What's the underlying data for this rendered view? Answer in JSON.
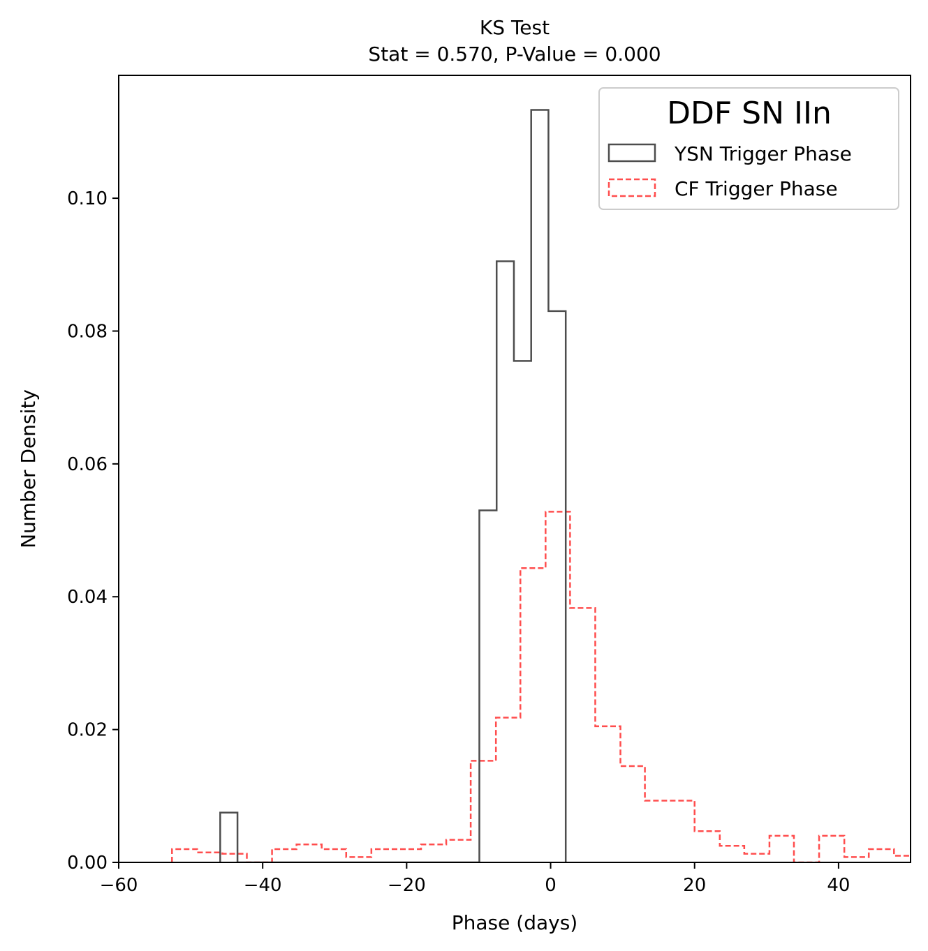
{
  "chart_data": {
    "type": "histogram-step",
    "title": "KS Test",
    "subtitle": "Stat = 0.570, P-Value = 0.000",
    "xlabel": "Phase (days)",
    "ylabel": "Number Density",
    "xlim": [
      -60,
      50
    ],
    "ylim": [
      0,
      0.1185
    ],
    "xticks": [
      -60,
      -40,
      -20,
      0,
      20,
      40
    ],
    "xtick_labels": [
      "−60",
      "−40",
      "−20",
      "0",
      "20",
      "40"
    ],
    "yticks": [
      0.0,
      0.02,
      0.04,
      0.06,
      0.08,
      0.1
    ],
    "ytick_labels": [
      "0.00",
      "0.02",
      "0.04",
      "0.06",
      "0.08",
      "0.10"
    ],
    "legend": {
      "title": "DDF SN IIn",
      "position": "upper right",
      "entries": [
        "YSN Trigger Phase",
        "CF Trigger Phase"
      ]
    },
    "series": [
      {
        "name": "YSN Trigger Phase",
        "color": "#4d4d4d",
        "linestyle": "solid",
        "bin_edges": [
          -45.9,
          -43.5,
          -41.1,
          -38.7,
          -36.3,
          -33.9,
          -31.5,
          -29.1,
          -26.7,
          -24.3,
          -21.9,
          -19.5,
          -17.1,
          -14.7,
          -12.3,
          -9.9,
          -7.5,
          -5.1,
          -2.7,
          -0.3,
          2.1
        ],
        "values": [
          0.0075,
          0,
          0,
          0,
          0,
          0,
          0,
          0,
          0,
          0,
          0,
          0,
          0,
          0,
          0,
          0.053,
          0.0905,
          0.0755,
          0.1133,
          0.083
        ]
      },
      {
        "name": "CF Trigger Phase",
        "color": "#ff4d4d",
        "linestyle": "dashed",
        "bin_edges": [
          -52.6,
          -49.1,
          -45.6,
          -42.2,
          -38.7,
          -35.3,
          -31.8,
          -28.4,
          -24.9,
          -21.5,
          -18.0,
          -14.5,
          -11.1,
          -7.6,
          -4.2,
          -0.7,
          2.7,
          6.2,
          9.7,
          13.1,
          16.6,
          20.0,
          23.5,
          26.9,
          30.4,
          33.8,
          37.3,
          40.8,
          44.2,
          47.7,
          51.1
        ],
        "values": [
          0.002,
          0.0015,
          0.0013,
          0.0,
          0.002,
          0.0027,
          0.002,
          0.0008,
          0.002,
          0.002,
          0.0027,
          0.0034,
          0.0153,
          0.0218,
          0.0443,
          0.0528,
          0.0383,
          0.0205,
          0.0145,
          0.0093,
          0.0093,
          0.0047,
          0.0025,
          0.0013,
          0.004,
          0.0,
          0.004,
          0.0008,
          0.002,
          0.001
        ]
      }
    ]
  }
}
